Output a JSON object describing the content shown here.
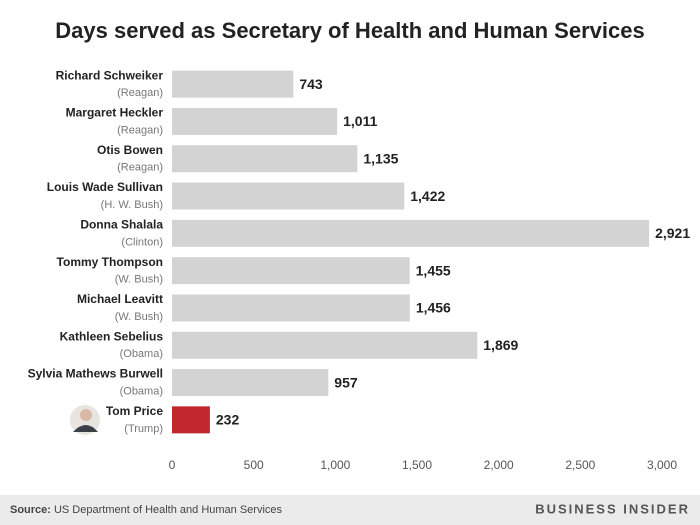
{
  "chart_data": {
    "type": "barh",
    "title": "Days served as Secretary of Health and Human Services",
    "categories": [
      "Richard Schweiker",
      "Margaret Heckler",
      "Otis Bowen",
      "Louis Wade Sullivan",
      "Donna Shalala",
      "Tommy Thompson",
      "Michael Leavitt",
      "Kathleen Sebelius",
      "Sylvia Mathews Burwell",
      "Tom Price"
    ],
    "category_sublabels": [
      "(Reagan)",
      "(Reagan)",
      "(Reagan)",
      "(H. W. Bush)",
      "(Clinton)",
      "(W. Bush)",
      "(W. Bush)",
      "(Obama)",
      "(Obama)",
      "(Trump)"
    ],
    "values": [
      743,
      1011,
      1135,
      1422,
      2921,
      1455,
      1456,
      1869,
      957,
      232
    ],
    "value_labels": [
      "743",
      "1,011",
      "1,135",
      "1,422",
      "2,921",
      "1,455",
      "1,456",
      "1,869",
      "957",
      "232"
    ],
    "colors": [
      "#d3d3d3",
      "#d3d3d3",
      "#d3d3d3",
      "#d3d3d3",
      "#d3d3d3",
      "#d3d3d3",
      "#d3d3d3",
      "#d3d3d3",
      "#d3d3d3",
      "#c0282d"
    ],
    "xlim": [
      0,
      3000
    ],
    "xticks": [
      0,
      500,
      {
        "value": 1000,
        "label": "1,000"
      },
      {
        "value": 1500,
        "label": "1,500"
      },
      {
        "value": 2000,
        "label": "2,000"
      },
      {
        "value": 2500,
        "label": "2,500"
      },
      {
        "value": 3000,
        "label": "3,000"
      }
    ],
    "source_label": "Source:",
    "source": "US Department of Health and Human Services",
    "brand": "BUSINESS INSIDER"
  }
}
